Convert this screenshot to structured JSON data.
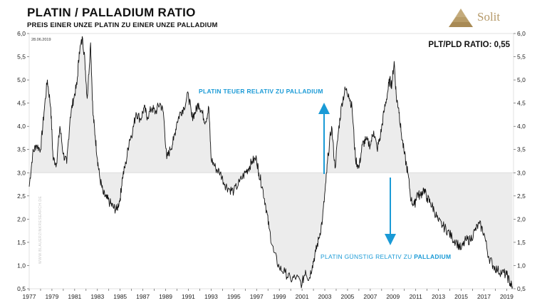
{
  "header": {
    "title": "PLATIN / PALLADIUM RATIO",
    "subtitle": "PREIS EINER UNZE PLATIN ZU EINER UNZE PALLADIUM"
  },
  "logo": {
    "text": "Solit"
  },
  "chart_data": {
    "type": "line",
    "date_label": "28.06.2019",
    "ratio_label": "PLT/PLD RATIO: 0,55",
    "reference_value": 3.0,
    "ylim": [
      0.5,
      6.0
    ],
    "xlim": [
      1977.0,
      2019.6
    ],
    "y_ticks": [
      "0,5",
      "1,0",
      "1,5",
      "2,0",
      "2,5",
      "3,0",
      "3,5",
      "4,0",
      "4,5",
      "5,0",
      "5,5",
      "6,0"
    ],
    "x_ticks": [
      "1977",
      "1979",
      "1981",
      "1983",
      "1985",
      "1987",
      "1989",
      "1991",
      "1993",
      "1995",
      "1997",
      "1999",
      "2001",
      "2003",
      "2005",
      "2007",
      "2009",
      "2011",
      "2013",
      "2015",
      "2017",
      "2019"
    ],
    "annotation_up": "PLATIN TEUER RELATIV ZU PALLADIUM",
    "annotation_down_prefix": "PLATIN GÜNSTIG RELATIV ZU ",
    "annotation_down_bold": "PALLADIUM",
    "watermark": "WWW.BLAUERZINKRESEARCH.DE",
    "colors": {
      "line": "#111111",
      "fill": "#ececec",
      "accent": "#1a9ad6"
    },
    "series": [
      {
        "x": [
          1977.0,
          1977.3,
          1977.6,
          1978.0,
          1978.3,
          1978.6,
          1978.9,
          1979.1,
          1979.4,
          1979.7,
          1980.0,
          1980.3,
          1980.6,
          1980.9,
          1981.2,
          1981.4,
          1981.7,
          1981.9,
          1982.1,
          1982.4,
          1982.6,
          1982.8,
          1983.0,
          1983.2,
          1983.5,
          1983.8,
          1984.1,
          1984.4,
          1984.7,
          1985.0,
          1985.2,
          1985.5,
          1985.8,
          1986.1,
          1986.4,
          1986.8,
          1987.1,
          1987.4,
          1987.8,
          1988.1,
          1988.5,
          1988.8,
          1989.1,
          1989.4,
          1989.7,
          1990.0,
          1990.3,
          1990.6,
          1991.0,
          1991.3,
          1991.6,
          1991.9,
          1992.2,
          1992.5,
          1992.8,
          1993.0,
          1993.4,
          1993.8,
          1994.2,
          1994.6,
          1995.0,
          1995.5,
          1996.0,
          1996.3,
          1996.6,
          1997.0,
          1997.2,
          1997.5,
          1997.8,
          1998.1,
          1998.5,
          1999.0,
          1999.5,
          2000.0,
          2000.5,
          2001.0,
          2001.3,
          2001.6,
          2001.9,
          2002.2,
          2002.5,
          2002.8,
          2003.1,
          2003.3,
          2003.6,
          2003.9,
          2004.2,
          2004.5,
          2004.8,
          2005.1,
          2005.4,
          2005.7,
          2006.0,
          2006.3,
          2006.6,
          2007.0,
          2007.3,
          2007.6,
          2007.9,
          2008.2,
          2008.5,
          2008.7,
          2008.9,
          2009.1,
          2009.3,
          2009.5,
          2009.7,
          2010.0,
          2010.3,
          2010.6,
          2010.9,
          2011.1,
          2011.4,
          2011.7,
          2012.0,
          2012.3,
          2012.6,
          2013.0,
          2013.4,
          2013.8,
          2014.2,
          2014.6,
          2015.0,
          2015.4,
          2015.8,
          2016.2,
          2016.6,
          2017.0,
          2017.4,
          2017.8,
          2018.2,
          2018.6,
          2019.0,
          2019.3,
          2019.5
        ],
        "y": [
          2.7,
          3.4,
          3.6,
          3.5,
          4.3,
          5.0,
          4.4,
          3.3,
          3.2,
          4.0,
          3.4,
          3.2,
          4.2,
          4.6,
          4.9,
          5.6,
          5.9,
          5.4,
          4.6,
          5.8,
          4.3,
          3.8,
          3.3,
          2.9,
          2.55,
          2.45,
          2.35,
          2.25,
          2.2,
          2.45,
          2.9,
          3.2,
          3.7,
          3.9,
          4.3,
          4.15,
          4.4,
          4.2,
          4.4,
          4.3,
          4.5,
          4.3,
          3.3,
          3.5,
          3.7,
          4.1,
          4.3,
          4.4,
          4.7,
          4.2,
          4.3,
          4.5,
          4.3,
          4.1,
          4.4,
          3.3,
          3.1,
          3.0,
          2.75,
          2.65,
          2.6,
          2.8,
          3.0,
          3.1,
          3.25,
          3.3,
          3.0,
          2.7,
          2.3,
          1.8,
          1.3,
          0.95,
          0.85,
          0.7,
          0.75,
          0.6,
          0.9,
          0.7,
          1.0,
          1.3,
          1.6,
          2.0,
          2.8,
          3.4,
          4.0,
          3.1,
          3.9,
          4.5,
          4.8,
          4.7,
          4.4,
          3.3,
          3.1,
          3.6,
          3.7,
          3.6,
          3.9,
          3.5,
          3.8,
          4.3,
          4.7,
          5.0,
          4.9,
          5.4,
          4.6,
          4.4,
          3.9,
          3.4,
          3.0,
          2.4,
          2.3,
          2.55,
          2.5,
          2.65,
          2.45,
          2.35,
          2.2,
          1.95,
          1.85,
          1.75,
          1.6,
          1.5,
          1.35,
          1.55,
          1.55,
          1.75,
          1.9,
          1.7,
          1.2,
          1.0,
          0.9,
          0.85,
          0.8,
          0.62,
          0.55
        ]
      }
    ]
  }
}
